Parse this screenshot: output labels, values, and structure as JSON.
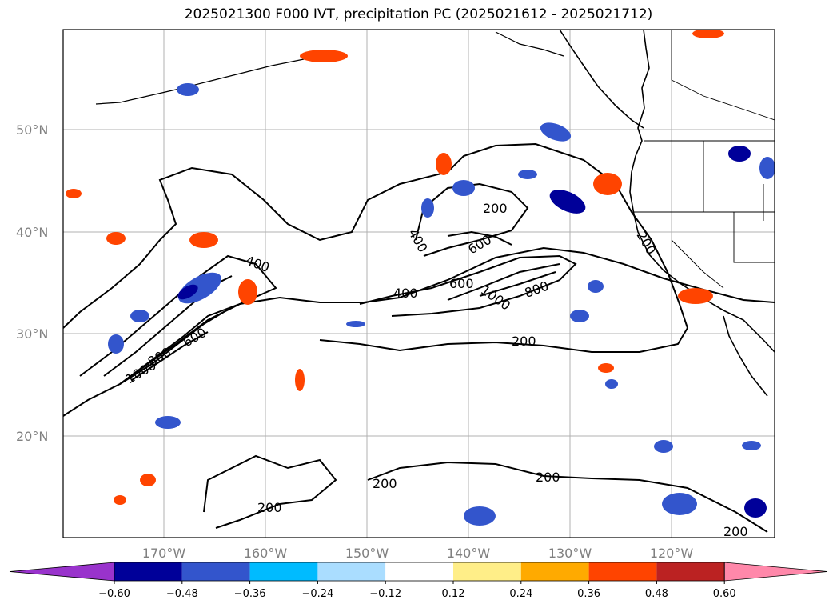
{
  "title": "2025021300 F000 IVT, precipitation PC (2025021612 - 2025021712)",
  "axes": {
    "lat_labels": [
      "50°N",
      "40°N",
      "30°N",
      "20°N"
    ],
    "lon_labels": [
      "170°W",
      "160°W",
      "150°W",
      "140°W",
      "130°W",
      "120°W"
    ]
  },
  "ivt_contour_labels": [
    "200",
    "400",
    "600",
    "800",
    "1000"
  ],
  "colorbar": {
    "ticks": [
      "−0.60",
      "−0.48",
      "−0.36",
      "−0.24",
      "−0.12",
      "0.12",
      "0.24",
      "0.36",
      "0.48",
      "0.60"
    ],
    "colors": [
      "#9933cc",
      "#000099",
      "#3355cc",
      "#00bbff",
      "#aaddff",
      "#ffffff",
      "#ffee88",
      "#ffaa00",
      "#ff4400",
      "#bb2222",
      "#ff88aa"
    ]
  },
  "colors": {
    "grid": "#b0b0b0",
    "coast": "#000000"
  }
}
